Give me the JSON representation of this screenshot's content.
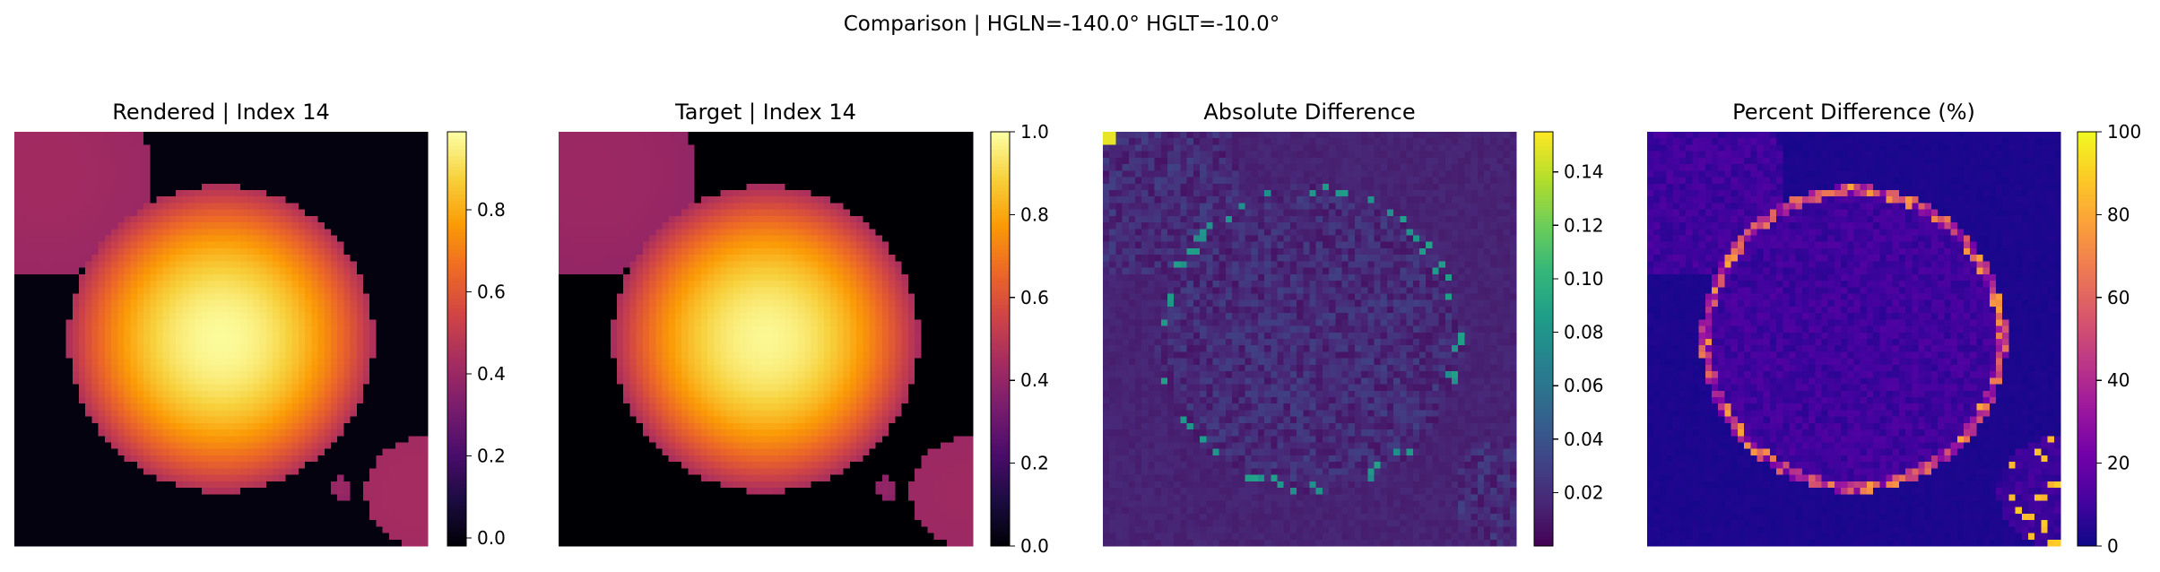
{
  "figure": {
    "suptitle": "Comparison | HGLN=-140.0° HGLT=-10.0°"
  },
  "colormaps": {
    "inferno": [
      "#000004",
      "#1b0c41",
      "#4a0c6b",
      "#781c6d",
      "#a52c60",
      "#cf4446",
      "#ed6925",
      "#fb9b06",
      "#f7d13d",
      "#fcffa4"
    ],
    "viridis": [
      "#440154",
      "#482878",
      "#3e4989",
      "#31688e",
      "#26828e",
      "#1f9e89",
      "#35b779",
      "#6ece58",
      "#b5de2b",
      "#fde725"
    ],
    "plasma": [
      "#0d0887",
      "#46039f",
      "#7201a8",
      "#9c179e",
      "#bd3786",
      "#d8576b",
      "#ed7953",
      "#fb9f3a",
      "#fdca26",
      "#f0f921"
    ]
  },
  "chart_data": [
    {
      "type": "heatmap",
      "title": "Rendered | Index 14",
      "colormap": "inferno",
      "vmin": -0.02,
      "vmax": 0.99,
      "colorbar_ticks": [
        0.0,
        0.2,
        0.4,
        0.6,
        0.8
      ],
      "colorbar_labels": [
        "0.0",
        "0.2",
        "0.4",
        "0.6",
        "0.8"
      ],
      "content": "intensity",
      "grid": [
        64,
        64
      ],
      "discs": [
        {
          "cx": 0.5,
          "cy": 0.5,
          "r": 0.37,
          "peak": 0.98,
          "edge": 0.45
        },
        {
          "cx": 0.08,
          "cy": 0.1,
          "r": 0.25,
          "peak": 0.42,
          "edge": 0.4
        },
        {
          "cx": 0.98,
          "cy": 0.87,
          "r": 0.13,
          "peak": 0.43,
          "edge": 0.42
        },
        {
          "cx": 0.79,
          "cy": 0.86,
          "r": 0.028,
          "peak": 0.4,
          "edge": 0.38
        }
      ]
    },
    {
      "type": "heatmap",
      "title": "Target | Index 14",
      "colormap": "inferno",
      "vmin": 0.0,
      "vmax": 1.0,
      "colorbar_ticks": [
        0.0,
        0.2,
        0.4,
        0.6,
        0.8,
        1.0
      ],
      "colorbar_labels": [
        "0.0",
        "0.2",
        "0.4",
        "0.6",
        "0.8",
        "1.0"
      ],
      "content": "intensity",
      "grid": [
        64,
        64
      ],
      "discs": [
        {
          "cx": 0.5,
          "cy": 0.5,
          "r": 0.37,
          "peak": 0.98,
          "edge": 0.45
        },
        {
          "cx": 0.08,
          "cy": 0.1,
          "r": 0.25,
          "peak": 0.42,
          "edge": 0.4
        },
        {
          "cx": 0.98,
          "cy": 0.87,
          "r": 0.13,
          "peak": 0.43,
          "edge": 0.42
        },
        {
          "cx": 0.79,
          "cy": 0.86,
          "r": 0.028,
          "peak": 0.4,
          "edge": 0.38
        }
      ]
    },
    {
      "type": "heatmap",
      "title": "Absolute Difference",
      "colormap": "viridis",
      "vmin": 0.0,
      "vmax": 0.155,
      "colorbar_ticks": [
        0.02,
        0.04,
        0.06,
        0.08,
        0.1,
        0.12,
        0.14
      ],
      "colorbar_labels": [
        "0.02",
        "0.04",
        "0.06",
        "0.08",
        "0.10",
        "0.12",
        "0.14"
      ],
      "content": "abs-diff",
      "grid": [
        64,
        64
      ],
      "discs": [
        {
          "cx": 0.5,
          "cy": 0.5,
          "r": 0.37
        },
        {
          "cx": 0.08,
          "cy": 0.1,
          "r": 0.25
        },
        {
          "cx": 0.98,
          "cy": 0.87,
          "r": 0.13
        }
      ]
    },
    {
      "type": "heatmap",
      "title": "Percent Difference (%)",
      "colormap": "plasma",
      "vmin": 0,
      "vmax": 100,
      "colorbar_ticks": [
        0,
        20,
        40,
        60,
        80,
        100
      ],
      "colorbar_labels": [
        "0",
        "20",
        "40",
        "60",
        "80",
        "100"
      ],
      "content": "pct-diff",
      "grid": [
        64,
        64
      ],
      "discs": [
        {
          "cx": 0.5,
          "cy": 0.5,
          "r": 0.37
        },
        {
          "cx": 0.08,
          "cy": 0.1,
          "r": 0.25
        },
        {
          "cx": 0.98,
          "cy": 0.87,
          "r": 0.13
        }
      ]
    }
  ]
}
